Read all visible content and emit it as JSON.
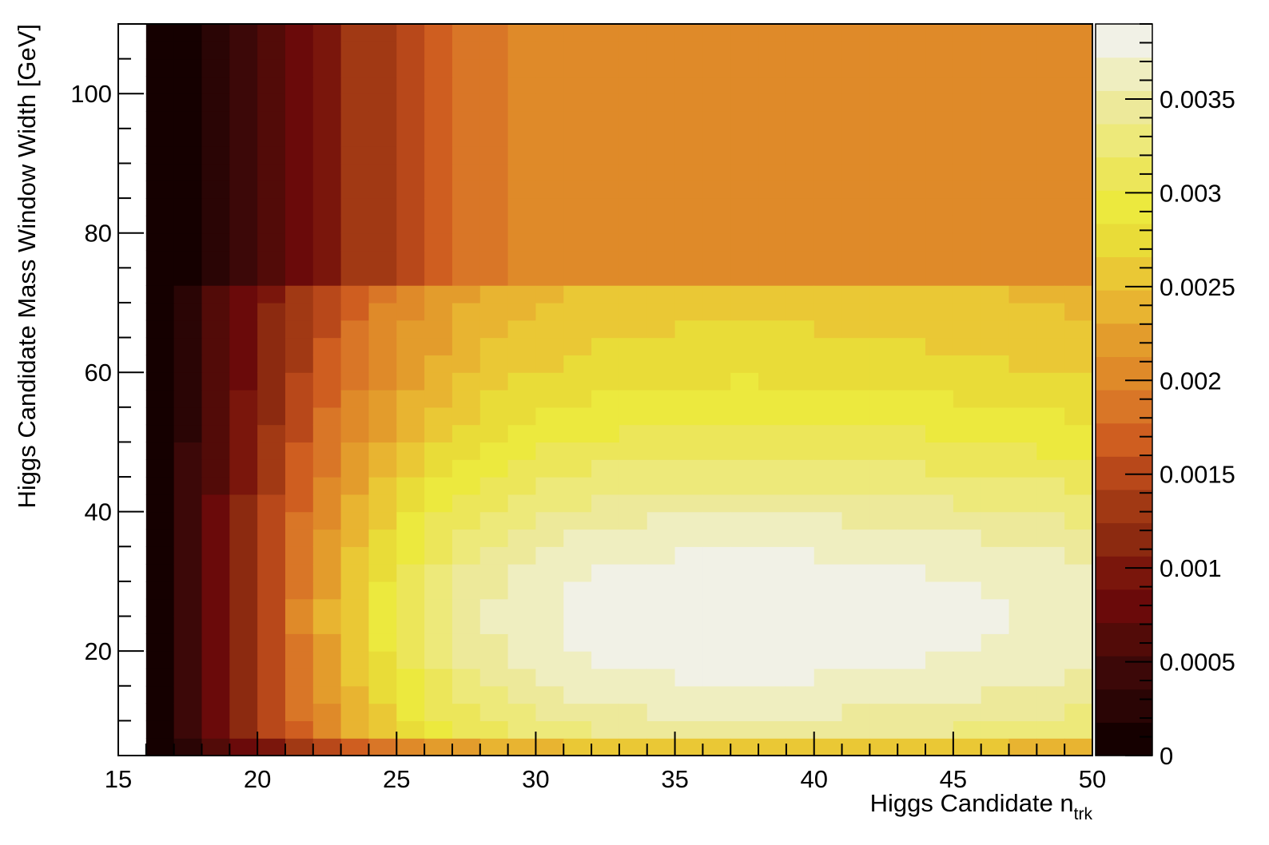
{
  "chart_data": {
    "type": "heatmap",
    "xlabel": "Higgs Candidate n",
    "xlabel_subscript": "trk",
    "ylabel": "Higgs Candidate Mass Window Width [GeV]",
    "xlim": [
      15,
      50
    ],
    "ylim": [
      5,
      110
    ],
    "x_ticks": [
      "15",
      "20",
      "25",
      "30",
      "35",
      "40",
      "45",
      "50"
    ],
    "y_ticks": [
      "20",
      "40",
      "60",
      "80",
      "100"
    ],
    "colorbar": {
      "range": [
        0,
        0.0039
      ],
      "ticks": [
        "0",
        "0.0005",
        "0.001",
        "0.0015",
        "0.002",
        "0.0025",
        "0.003",
        "0.0035"
      ],
      "palette": [
        "#150000",
        "#2a0505",
        "#3c0808",
        "#520b08",
        "#6a0a0a",
        "#7a160c",
        "#8c2a10",
        "#a13914",
        "#b8481a",
        "#cf5e20",
        "#d97627",
        "#df8a29",
        "#e39c2c",
        "#e8b431",
        "#eac835",
        "#e9dc38",
        "#ece93e",
        "#ece65a",
        "#ede97a",
        "#ede99a",
        "#efeec0",
        "#f1f1e6"
      ]
    },
    "peak": {
      "x": 35,
      "y": 25,
      "value": 0.0039
    },
    "grid": false
  }
}
